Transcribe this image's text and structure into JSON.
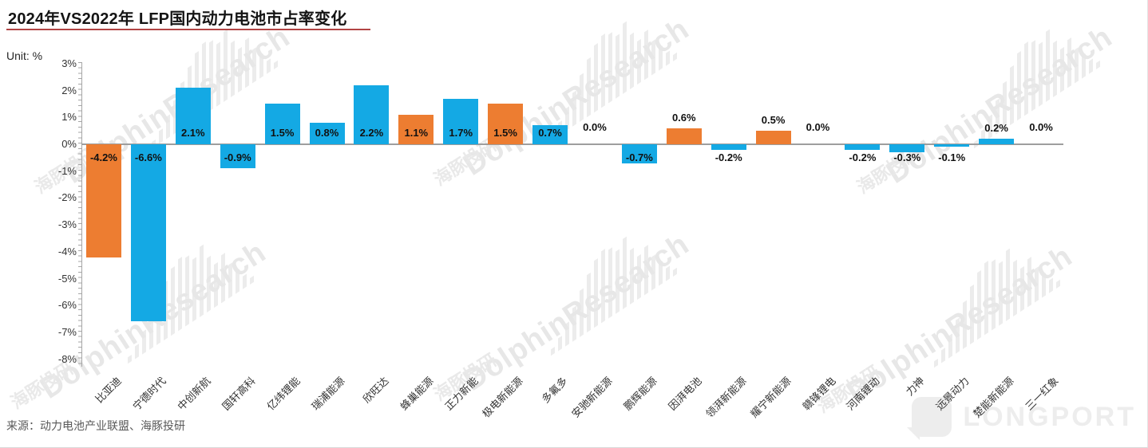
{
  "title": "2024年VS2022年 LFP国内动力电池市占率变化",
  "unit_label": "Unit: %",
  "source": "来源：动力电池产业联盟、海豚投研",
  "watermark": {
    "logo_en": "DolphinResearch",
    "logo_cn": "海豚投研"
  },
  "brand": {
    "name": "LONGPORT"
  },
  "colors": {
    "blue": "#14A9E4",
    "orange": "#ED7D31",
    "axis": "#A6A6A6"
  },
  "chart_data": {
    "type": "bar",
    "title": "2024年VS2022年 LFP国内动力电池市占率变化",
    "unit": "%",
    "categories": [
      "比亚迪",
      "宁德时代",
      "中创新航",
      "国轩高科",
      "亿纬锂能",
      "瑞浦能源",
      "欣旺达",
      "蜂巢能源",
      "正力新能",
      "极电新能源",
      "多氟多",
      "安驰新能源",
      "鹏辉能源",
      "因湃电池",
      "领湃新能源",
      "耀宁新能源",
      "赣锋锂电",
      "河南锂动",
      "力神",
      "远景动力",
      "楚能新能源",
      "三一红象"
    ],
    "values": [
      -4.2,
      -6.6,
      2.1,
      -0.9,
      1.5,
      0.8,
      2.2,
      1.1,
      1.7,
      1.5,
      0.7,
      0.0,
      -0.7,
      0.6,
      -0.2,
      0.5,
      0.0,
      -0.2,
      -0.3,
      -0.1,
      0.2,
      0.0
    ],
    "labels": [
      "-4.2%",
      "-6.6%",
      "2.1%",
      "-0.9%",
      "1.5%",
      "0.8%",
      "2.2%",
      "1.1%",
      "1.7%",
      "1.5%",
      "0.7%",
      "0.0%",
      "-0.7%",
      "0.6%",
      "-0.2%",
      "0.5%",
      "0.0%",
      "-0.2%",
      "-0.3%",
      "-0.1%",
      "0.2%",
      "0.0%"
    ],
    "bar_colors": [
      "orange",
      "blue",
      "blue",
      "blue",
      "blue",
      "blue",
      "blue",
      "orange",
      "blue",
      "orange",
      "blue",
      "blue",
      "blue",
      "orange",
      "blue",
      "orange",
      "blue",
      "blue",
      "blue",
      "blue",
      "blue",
      "blue"
    ],
    "ylim": [
      -8,
      3
    ],
    "yticks": [
      "3%",
      "2%",
      "1%",
      "0%",
      "-1%",
      "-2%",
      "-3%",
      "-4%",
      "-5%",
      "-6%",
      "-7%",
      "-8%"
    ],
    "grid": false,
    "legend": false
  }
}
